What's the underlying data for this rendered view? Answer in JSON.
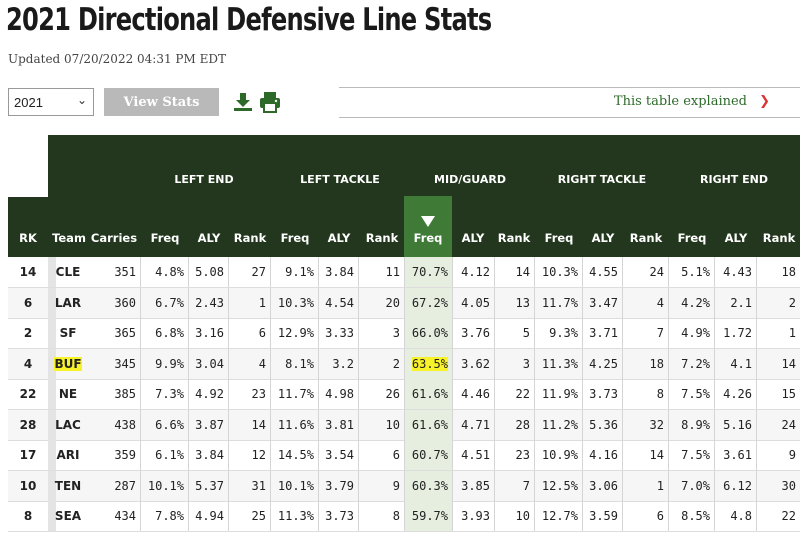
{
  "page": {
    "title": "2021 Directional Defensive Line Stats",
    "updated": "Updated 07/20/2022 04:31 PM EDT"
  },
  "controls": {
    "season_value": "2021",
    "view_button": "View Stats",
    "explain_text": "This table explained"
  },
  "colors": {
    "header_bg": "#22371d",
    "sorted_col": "#3f7a37",
    "accent_green": "#2d6a2a",
    "highlight": "#f7f22a",
    "chevron_red": "#d33333"
  },
  "icons": {
    "download": "download-icon",
    "print": "printer-icon",
    "select": "chevron-down-icon",
    "explain": "chevron-down-icon",
    "sort": "sort-desc-triangle-icon"
  },
  "table": {
    "groups": [
      "LEFT END",
      "LEFT TACKLE",
      "MID/GUARD",
      "RIGHT TACKLE",
      "RIGHT END"
    ],
    "columns": [
      "RK",
      "Team",
      "Carries",
      "Freq",
      "ALY",
      "Rank",
      "Freq",
      "ALY",
      "Rank",
      "Freq",
      "ALY",
      "Rank",
      "Freq",
      "ALY",
      "Rank",
      "Freq",
      "ALY",
      "Rank"
    ],
    "sorted_column": "Freq (MID/GUARD)",
    "highlighted_team": "BUF",
    "rows": [
      [
        "14",
        "CLE",
        "351",
        "4.8%",
        "5.08",
        "27",
        "9.1%",
        "3.84",
        "11",
        "70.7%",
        "4.12",
        "14",
        "10.3%",
        "4.55",
        "24",
        "5.1%",
        "4.43",
        "18"
      ],
      [
        "6",
        "LAR",
        "360",
        "6.7%",
        "2.43",
        "1",
        "10.3%",
        "4.54",
        "20",
        "67.2%",
        "4.05",
        "13",
        "11.7%",
        "3.47",
        "4",
        "4.2%",
        "2.1",
        "2"
      ],
      [
        "2",
        "SF",
        "365",
        "6.8%",
        "3.16",
        "6",
        "12.9%",
        "3.33",
        "3",
        "66.0%",
        "3.76",
        "5",
        "9.3%",
        "3.71",
        "7",
        "4.9%",
        "1.72",
        "1"
      ],
      [
        "4",
        "BUF",
        "345",
        "9.9%",
        "3.04",
        "4",
        "8.1%",
        "3.2",
        "2",
        "63.5%",
        "3.62",
        "3",
        "11.3%",
        "4.25",
        "18",
        "7.2%",
        "4.1",
        "14"
      ],
      [
        "22",
        "NE",
        "385",
        "7.3%",
        "4.92",
        "23",
        "11.7%",
        "4.98",
        "26",
        "61.6%",
        "4.46",
        "22",
        "11.9%",
        "3.73",
        "8",
        "7.5%",
        "4.26",
        "15"
      ],
      [
        "28",
        "LAC",
        "438",
        "6.6%",
        "3.87",
        "14",
        "11.6%",
        "3.81",
        "10",
        "61.6%",
        "4.71",
        "28",
        "11.2%",
        "5.36",
        "32",
        "8.9%",
        "5.16",
        "24"
      ],
      [
        "17",
        "ARI",
        "359",
        "6.1%",
        "3.84",
        "12",
        "14.5%",
        "3.54",
        "6",
        "60.7%",
        "4.51",
        "23",
        "10.9%",
        "4.16",
        "14",
        "7.5%",
        "3.61",
        "9"
      ],
      [
        "10",
        "TEN",
        "287",
        "10.1%",
        "5.37",
        "31",
        "10.1%",
        "3.79",
        "9",
        "60.3%",
        "3.85",
        "7",
        "12.5%",
        "3.06",
        "1",
        "7.0%",
        "6.12",
        "30"
      ],
      [
        "8",
        "SEA",
        "434",
        "7.8%",
        "4.94",
        "25",
        "11.3%",
        "3.73",
        "8",
        "59.7%",
        "3.93",
        "10",
        "12.7%",
        "3.59",
        "6",
        "8.5%",
        "4.8",
        "22"
      ]
    ]
  }
}
